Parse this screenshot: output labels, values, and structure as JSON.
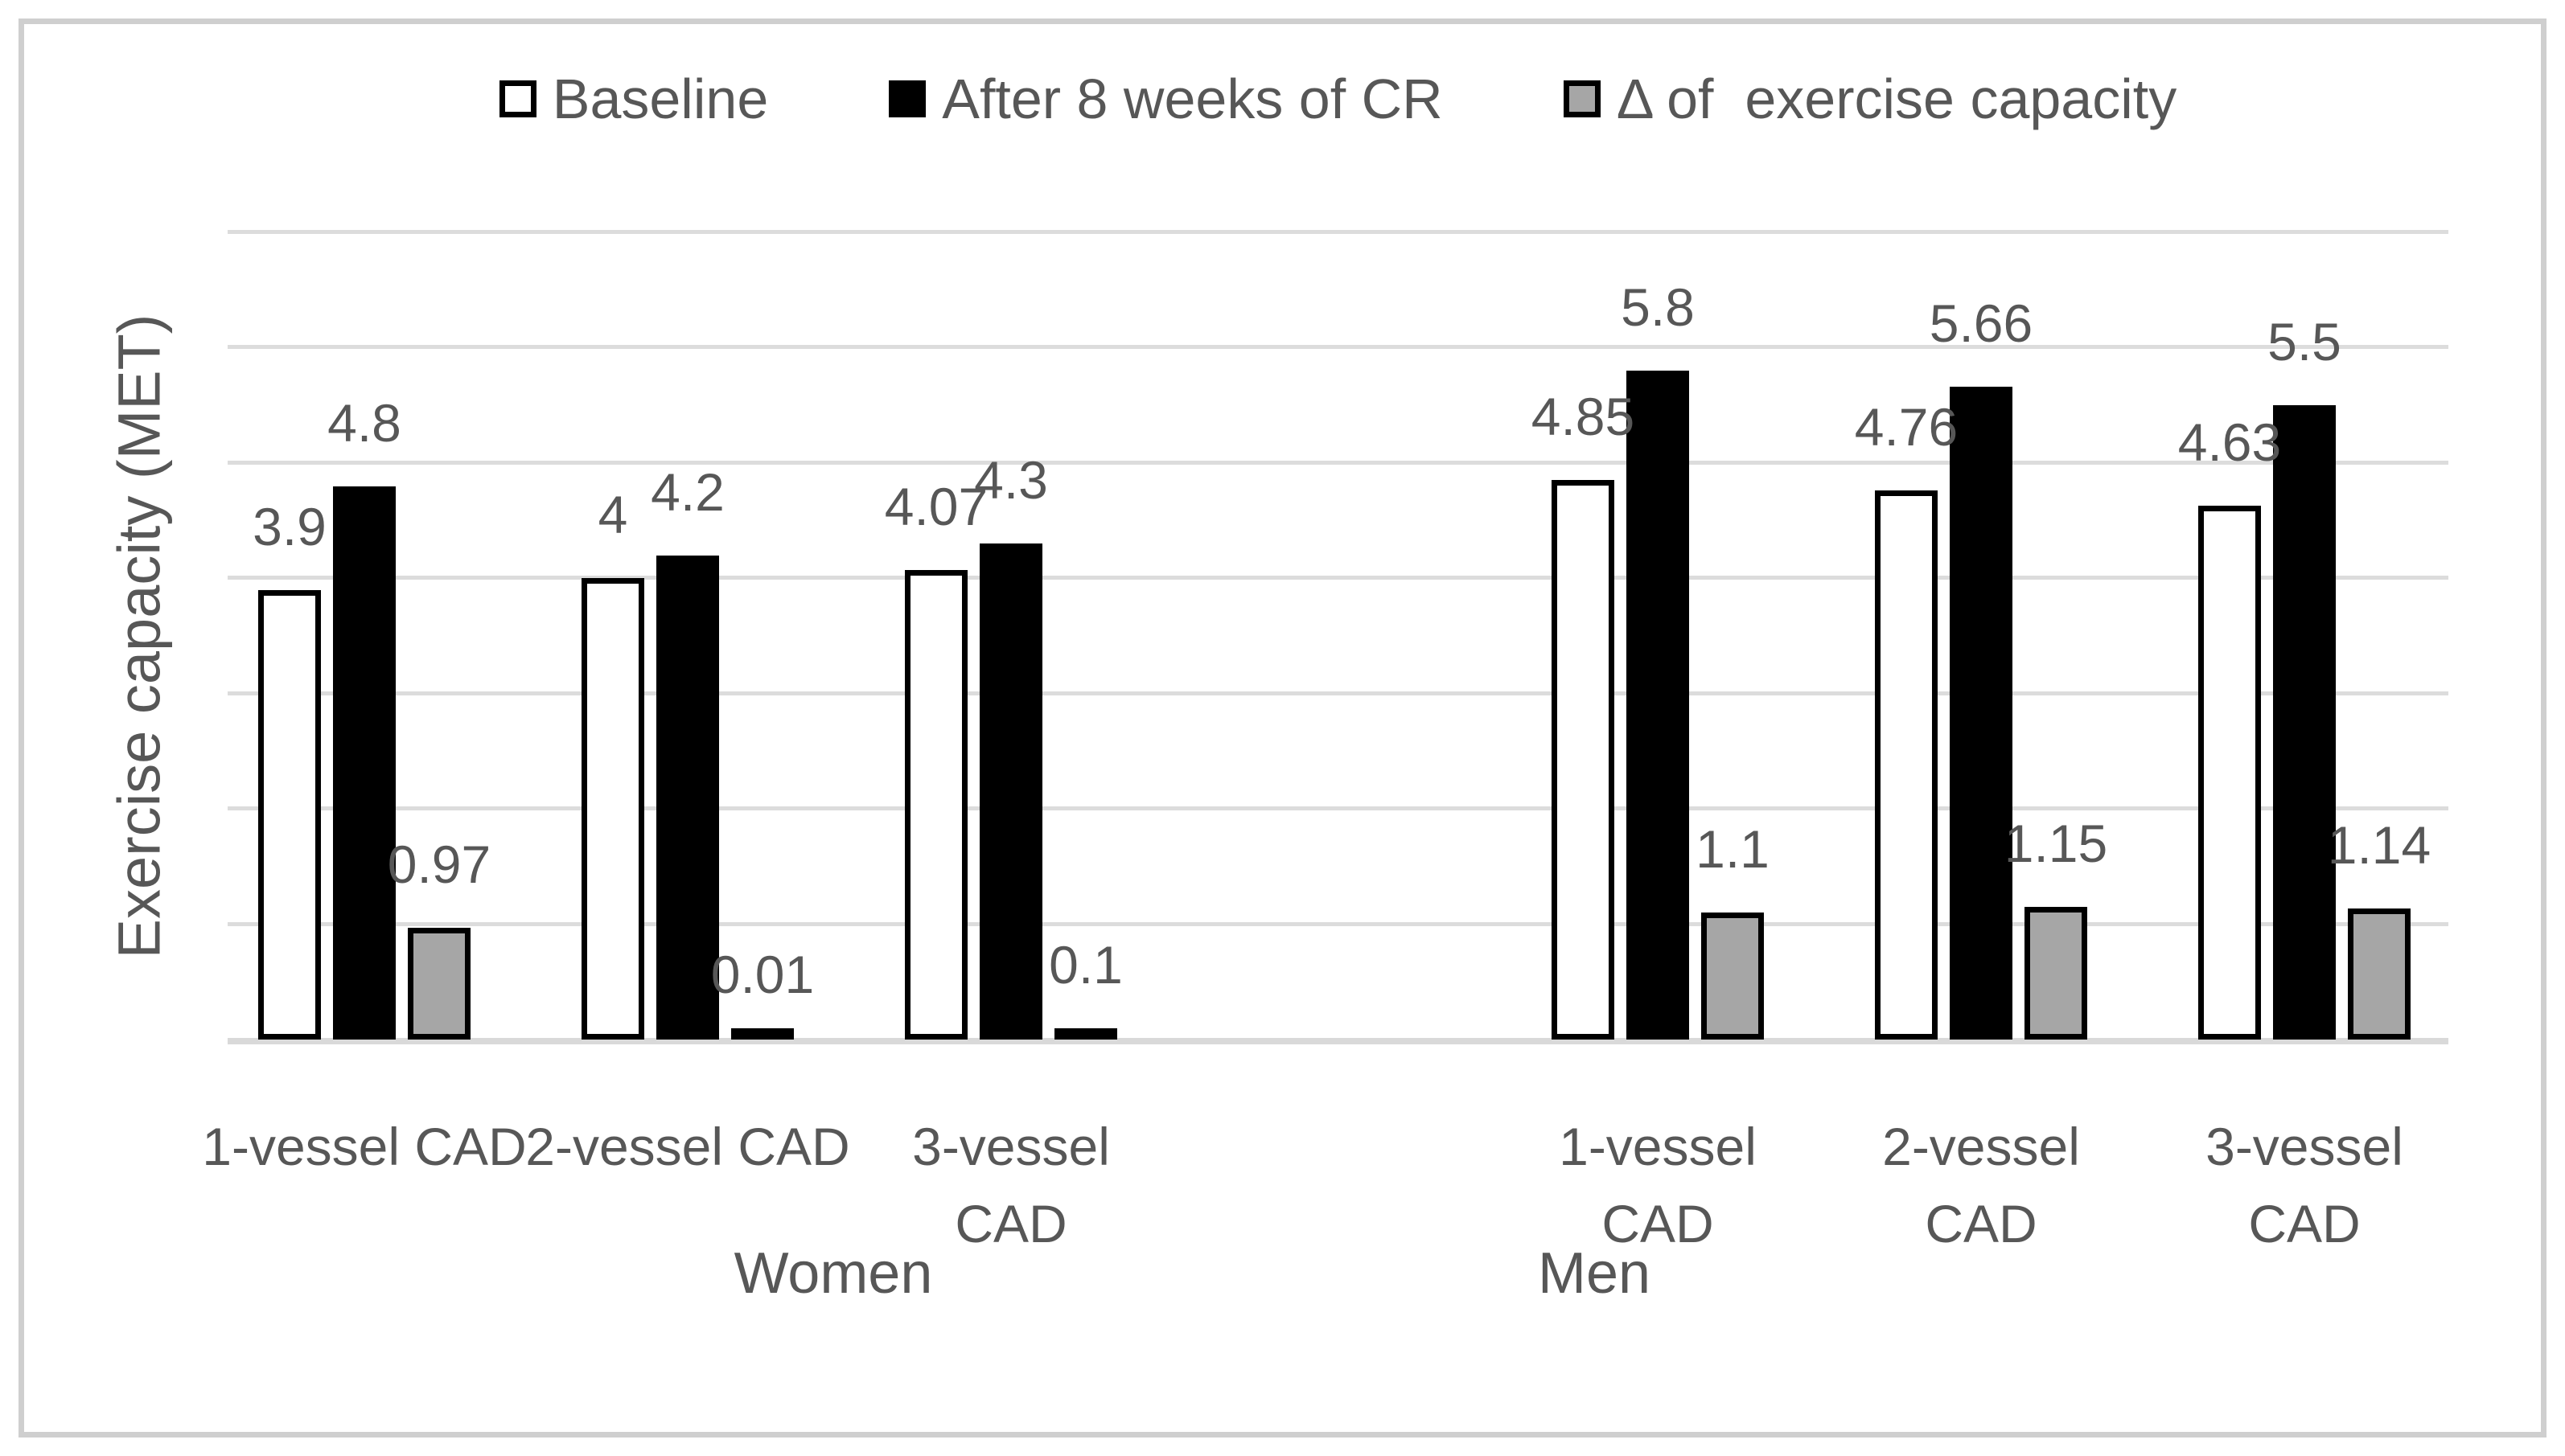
{
  "colors": {
    "baseline_fill": "#ffffff",
    "after_fill": "#000000",
    "delta_fill": "#a6a6a6",
    "bar_border": "#000000",
    "gridline": "#dcdcdc",
    "axis_line": "#d9d9d9",
    "text": "#575757",
    "figure_border": "#cfcfcf"
  },
  "chart_data": {
    "type": "bar",
    "title": "",
    "xlabel": "",
    "ylabel": "Exercise capacity (MET)",
    "ylim": [
      0,
      7
    ],
    "gridline_interval": 1,
    "grid": true,
    "y_tick_labels_visible": false,
    "legend_position": "top",
    "series": [
      {
        "name": "Baseline",
        "swatch": "white"
      },
      {
        "name": "After 8 weeks of CR",
        "swatch": "black"
      },
      {
        "name": "Δ of  exercise capacity",
        "swatch": "gray"
      }
    ],
    "sections": [
      {
        "label": "Women",
        "groups": [
          {
            "category": "1-vessel CAD",
            "values": [
              3.9,
              4.8,
              0.97
            ],
            "labels": [
              "3.9",
              "4.8",
              "0.97"
            ]
          },
          {
            "category": "2-vessel CAD",
            "values": [
              4,
              4.2,
              0.01
            ],
            "labels": [
              "4",
              "4.2",
              "0.01"
            ]
          },
          {
            "category": "3-vessel\nCAD",
            "values": [
              4.07,
              4.3,
              0.1
            ],
            "labels": [
              "4.07",
              "4.3",
              "0.1"
            ]
          }
        ]
      },
      {
        "label": "Men",
        "groups": [
          {
            "category": "1-vessel\nCAD",
            "values": [
              4.85,
              5.8,
              1.1
            ],
            "labels": [
              "4.85",
              "5.8",
              "1.1"
            ]
          },
          {
            "category": "2-vessel\nCAD",
            "values": [
              4.76,
              5.66,
              1.15
            ],
            "labels": [
              "4.76",
              "5.66",
              "1.15"
            ]
          },
          {
            "category": "3-vessel\nCAD",
            "values": [
              4.63,
              5.5,
              1.14
            ],
            "labels": [
              "4.63",
              "5.5",
              "1.14"
            ]
          }
        ]
      }
    ]
  }
}
